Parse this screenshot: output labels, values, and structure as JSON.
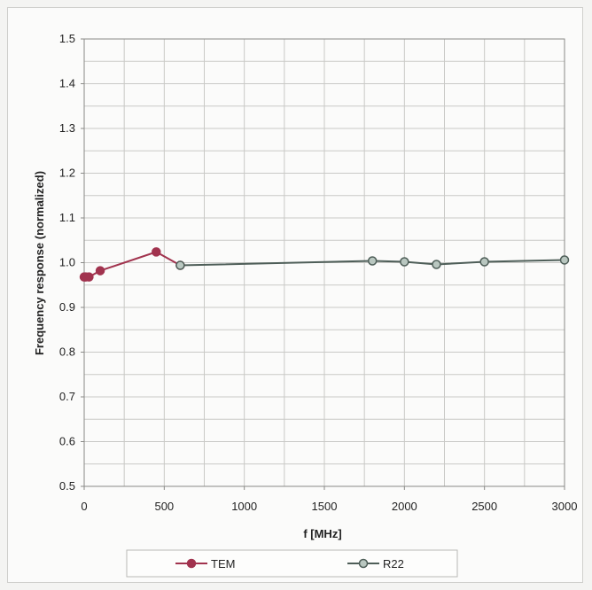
{
  "chart_data": {
    "type": "line",
    "title": "",
    "xlabel": "f [MHz]",
    "ylabel": "Frequency response (normalized)",
    "xlim": [
      0,
      3000
    ],
    "ylim": [
      0.5,
      1.5
    ],
    "x_ticks": [
      0,
      500,
      1000,
      1500,
      2000,
      2500,
      3000
    ],
    "y_ticks": [
      0.5,
      0.6,
      0.7,
      0.8,
      0.9,
      1.0,
      1.1,
      1.2,
      1.3,
      1.4,
      1.5
    ],
    "y_tick_labels": [
      "0.5",
      "0.6",
      "0.7",
      "0.8",
      "0.9",
      "1.0",
      "1.1",
      "1.2",
      "1.3",
      "1.4",
      "1.5"
    ],
    "grid": true,
    "legend_position": "bottom",
    "series": [
      {
        "name": "TEM",
        "color": "#a1334e",
        "marker_fill": "#a1334e",
        "x": [
          0,
          10,
          30,
          100,
          450,
          600
        ],
        "y": [
          0.968,
          0.968,
          0.968,
          0.982,
          1.024,
          0.994
        ]
      },
      {
        "name": "R22",
        "color": "#4e5e58",
        "marker_fill": "#b9c7c0",
        "x": [
          600,
          1800,
          2000,
          2200,
          2500,
          3000
        ],
        "y": [
          0.994,
          1.004,
          1.002,
          0.996,
          1.002,
          1.006
        ]
      }
    ]
  }
}
